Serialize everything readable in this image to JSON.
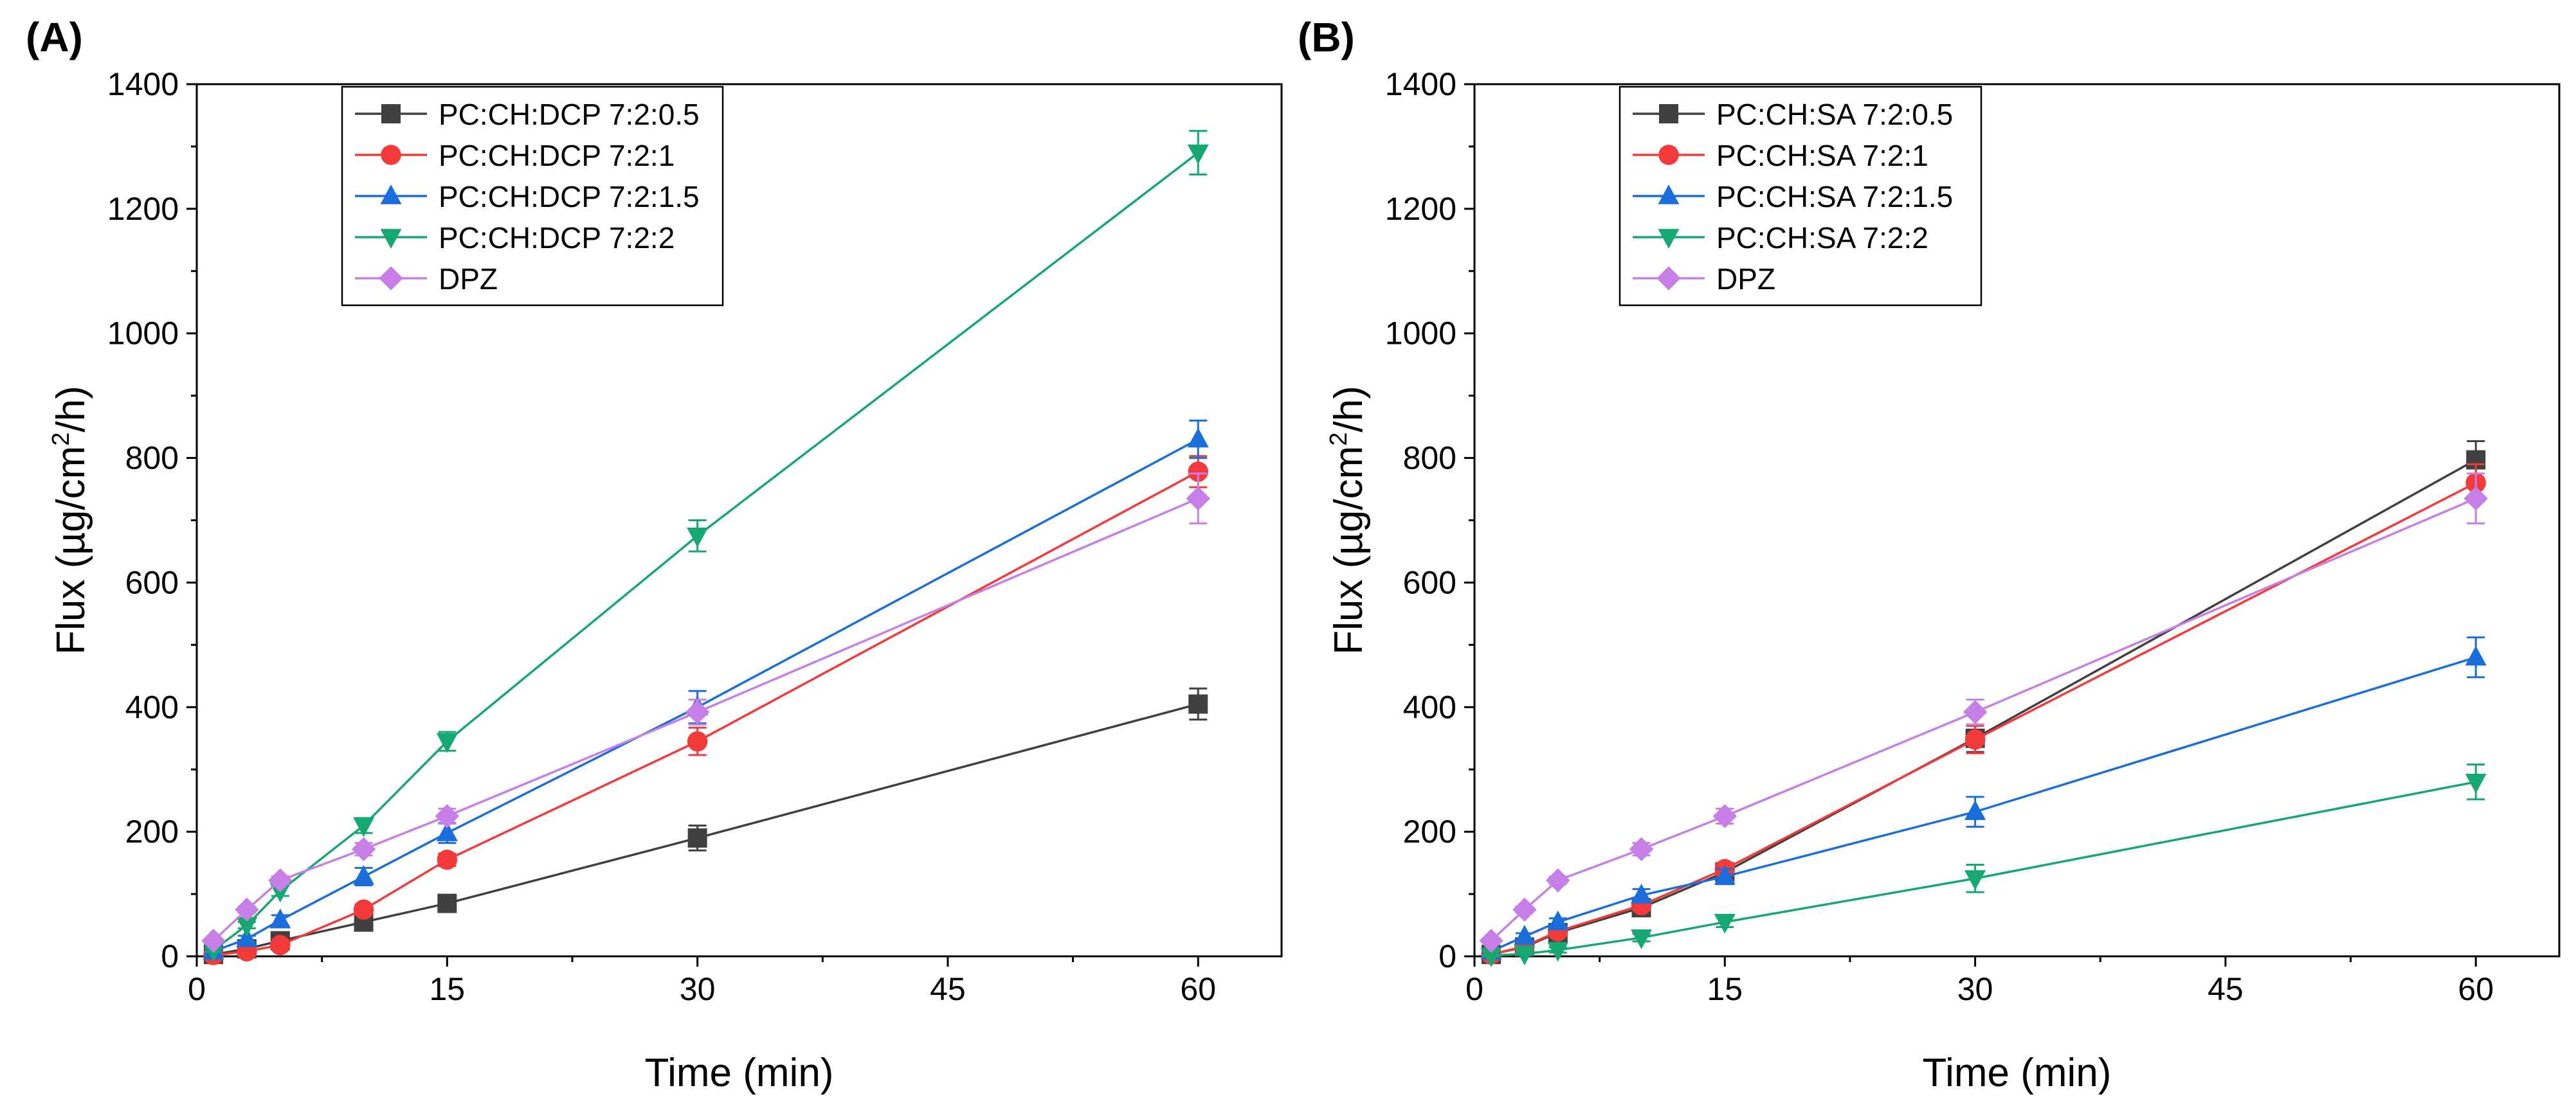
{
  "chart_data": [
    {
      "type": "line",
      "panel_label": "(A)",
      "xlabel": "Time (min)",
      "ylabel_prefix": "Flux (µg/cm",
      "ylabel_sup": "2",
      "ylabel_suffix": "/h)",
      "xlim": [
        0,
        65
      ],
      "ylim": [
        0,
        1400
      ],
      "xticks": [
        0,
        15,
        30,
        45,
        60
      ],
      "yticks": [
        0,
        200,
        400,
        600,
        800,
        1000,
        1200,
        1400
      ],
      "legend_position": "top-center",
      "x": [
        1,
        3,
        5,
        10,
        15,
        30,
        60
      ],
      "series": [
        {
          "name": "PC:CH:DCP 7:2:0.5",
          "color": "#404040",
          "marker": "square",
          "values": [
            3,
            12,
            25,
            55,
            85,
            190,
            405
          ],
          "errors": [
            2,
            4,
            6,
            8,
            10,
            20,
            25
          ]
        },
        {
          "name": "PC:CH:DCP 7:2:1",
          "color": "#f23a3a",
          "marker": "circle",
          "values": [
            2,
            8,
            18,
            75,
            155,
            345,
            778
          ],
          "errors": [
            2,
            4,
            5,
            8,
            10,
            22,
            25
          ]
        },
        {
          "name": "PC:CH:DCP 7:2:1.5",
          "color": "#1a6edb",
          "marker": "triangle-up",
          "values": [
            8,
            28,
            58,
            128,
            198,
            400,
            830
          ],
          "errors": [
            3,
            5,
            8,
            14,
            16,
            26,
            30
          ]
        },
        {
          "name": "PC:CH:DCP 7:2:2",
          "color": "#16a871",
          "marker": "triangle-down",
          "values": [
            10,
            50,
            105,
            210,
            345,
            675,
            1290
          ],
          "errors": [
            3,
            5,
            8,
            12,
            15,
            25,
            35
          ]
        },
        {
          "name": "DPZ",
          "color": "#c57fe6",
          "marker": "diamond",
          "values": [
            25,
            75,
            122,
            172,
            225,
            392,
            735
          ],
          "errors": [
            3,
            5,
            6,
            10,
            12,
            20,
            40
          ]
        }
      ]
    },
    {
      "type": "line",
      "panel_label": "(B)",
      "xlabel": "Time (min)",
      "ylabel_prefix": "Flux (µg/cm",
      "ylabel_sup": "2",
      "ylabel_suffix": "/h)",
      "xlim": [
        0,
        65
      ],
      "ylim": [
        0,
        1400
      ],
      "xticks": [
        0,
        15,
        30,
        45,
        60
      ],
      "yticks": [
        0,
        200,
        400,
        600,
        800,
        1000,
        1200,
        1400
      ],
      "legend_position": "top-center",
      "x": [
        1,
        3,
        5,
        10,
        15,
        30,
        60
      ],
      "series": [
        {
          "name": "PC:CH:SA 7:2:0.5",
          "color": "#404040",
          "marker": "square",
          "values": [
            3,
            15,
            38,
            78,
            135,
            350,
            797
          ],
          "errors": [
            2,
            4,
            6,
            8,
            10,
            22,
            30
          ]
        },
        {
          "name": "PC:CH:SA 7:2:1",
          "color": "#f23a3a",
          "marker": "circle",
          "values": [
            3,
            16,
            40,
            82,
            140,
            348,
            760
          ],
          "errors": [
            2,
            4,
            6,
            8,
            10,
            22,
            30
          ]
        },
        {
          "name": "PC:CH:SA 7:2:1.5",
          "color": "#1a6edb",
          "marker": "triangle-up",
          "values": [
            8,
            32,
            55,
            98,
            128,
            232,
            480
          ],
          "errors": [
            3,
            5,
            6,
            10,
            12,
            24,
            32
          ]
        },
        {
          "name": "PC:CH:SA 7:2:2",
          "color": "#16a871",
          "marker": "triangle-down",
          "values": [
            1,
            4,
            10,
            30,
            55,
            125,
            280
          ],
          "errors": [
            1,
            2,
            4,
            6,
            8,
            22,
            28
          ]
        },
        {
          "name": "DPZ",
          "color": "#c57fe6",
          "marker": "diamond",
          "values": [
            25,
            75,
            122,
            172,
            225,
            392,
            735
          ],
          "errors": [
            3,
            5,
            6,
            10,
            12,
            20,
            40
          ]
        }
      ]
    }
  ]
}
